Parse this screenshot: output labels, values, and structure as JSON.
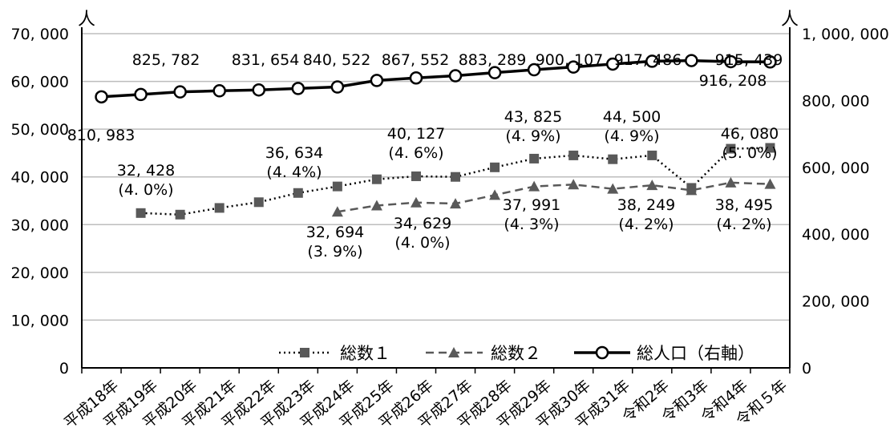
{
  "chart_data": {
    "type": "line",
    "left_axis_unit": "人",
    "right_axis_unit": "人",
    "left_ylim": [
      0,
      70000
    ],
    "right_ylim": [
      0,
      1000000
    ],
    "left_ticks": [
      0,
      10000,
      20000,
      30000,
      40000,
      50000,
      60000,
      70000
    ],
    "left_tick_labels": [
      "0",
      "10, 000",
      "20, 000",
      "30, 000",
      "40, 000",
      "50, 000",
      "60, 000",
      "70, 000"
    ],
    "right_ticks": [
      0,
      200000,
      400000,
      600000,
      800000,
      1000000
    ],
    "right_tick_labels": [
      "0",
      "200, 000",
      "400, 000",
      "600, 000",
      "800, 000",
      "1, 000, 000"
    ],
    "categories": [
      "平成18年",
      "平成19年",
      "平成20年",
      "平成21年",
      "平成22年",
      "平成23年",
      "平成24年",
      "平成25年",
      "平成26年",
      "平成27年",
      "平成28年",
      "平成29年",
      "平成30年",
      "平成31年",
      "令和2年",
      "令和3年",
      "令和4年",
      "令和５年"
    ],
    "grid": true,
    "legend_position": "bottom-right",
    "series": [
      {
        "name": "総数１",
        "axis": "left",
        "style": "dotted",
        "marker": "square",
        "values": [
          null,
          32428,
          32100,
          33500,
          34700,
          36634,
          38000,
          39500,
          40127,
          40000,
          42000,
          43825,
          44500,
          43700,
          44500,
          37700,
          45900,
          46080
        ]
      },
      {
        "name": "総数２",
        "axis": "left",
        "style": "dashed",
        "marker": "triangle",
        "values": [
          null,
          null,
          null,
          null,
          null,
          null,
          32694,
          34000,
          34629,
          34400,
          36200,
          37991,
          38400,
          37500,
          38249,
          37200,
          38800,
          38495
        ]
      },
      {
        "name": "総人口（右軸）",
        "axis": "right",
        "style": "solid",
        "marker": "circle",
        "values": [
          810983,
          818000,
          825782,
          829000,
          831654,
          836000,
          840522,
          860000,
          867552,
          874000,
          883289,
          892000,
          900107,
          909000,
          917486,
          919500,
          916208,
          915439
        ]
      }
    ],
    "annotations": {
      "total": [
        {
          "i": 0,
          "text": "810, 983"
        },
        {
          "i": 2,
          "text": "825, 782"
        },
        {
          "i": 4,
          "text": "831, 654"
        },
        {
          "i": 6,
          "text": "840, 522"
        },
        {
          "i": 8,
          "text": "867, 552"
        },
        {
          "i": 10,
          "text": "883, 289"
        },
        {
          "i": 12,
          "text": "900, 107"
        },
        {
          "i": 14,
          "text": "917, 486"
        },
        {
          "i": 16,
          "text": "916, 208"
        },
        {
          "i": 17,
          "text": "915, 439"
        }
      ],
      "s1": [
        {
          "i": 1,
          "lines": [
            "32, 428",
            "(4. 0%)"
          ]
        },
        {
          "i": 5,
          "lines": [
            "36, 634",
            "(4. 4%)"
          ]
        },
        {
          "i": 8,
          "lines": [
            "40, 127",
            "(4. 6%)"
          ]
        },
        {
          "i": 11,
          "lines": [
            "43, 825",
            "(4. 9%)"
          ]
        },
        {
          "i": 14,
          "lines": [
            "44, 500",
            "(4. 9%)"
          ]
        },
        {
          "i": 17,
          "lines": [
            "46, 080",
            "(5. 0%)"
          ]
        }
      ],
      "s2": [
        {
          "i": 6,
          "lines": [
            "32, 694",
            "(3. 9%)"
          ]
        },
        {
          "i": 8,
          "lines": [
            "34, 629",
            "(4. 0%)"
          ]
        },
        {
          "i": 11,
          "lines": [
            "37, 991",
            "(4. 3%)"
          ]
        },
        {
          "i": 14,
          "lines": [
            "38, 249",
            "(4. 2%)"
          ]
        },
        {
          "i": 17,
          "lines": [
            "38, 495",
            "(4. 2%)"
          ]
        }
      ]
    }
  }
}
